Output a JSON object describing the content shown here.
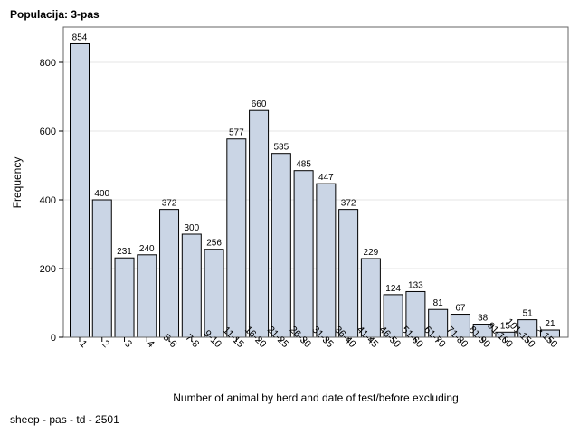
{
  "header": {
    "title": "Populacija: 3-pas"
  },
  "footnote": "sheep - pas - td - 2501",
  "chart_data": {
    "type": "bar",
    "title": "",
    "xlabel": "Number of animal by herd and date of test/before excluding",
    "ylabel": "Frequency",
    "ylim": [
      0,
      900
    ],
    "yticks": [
      0,
      200,
      400,
      600,
      800
    ],
    "grid": true,
    "categories": [
      "1",
      "2",
      "3",
      "4",
      "5-6",
      "7-8",
      "9-10",
      "11-15",
      "16-20",
      "21-25",
      "26-30",
      "31-35",
      "36-40",
      "41-45",
      "46-50",
      "51-60",
      "61-70",
      "71-80",
      "81-90",
      "91-100",
      "101-150",
      "> 150"
    ],
    "values": [
      854,
      400,
      231,
      240,
      372,
      300,
      256,
      577,
      660,
      535,
      485,
      447,
      372,
      229,
      124,
      133,
      81,
      67,
      38,
      15,
      51,
      21
    ],
    "colors": {
      "bar_fill": "#cad5e5",
      "bar_stroke": "#000000",
      "grid": "#e6e6e6"
    }
  }
}
